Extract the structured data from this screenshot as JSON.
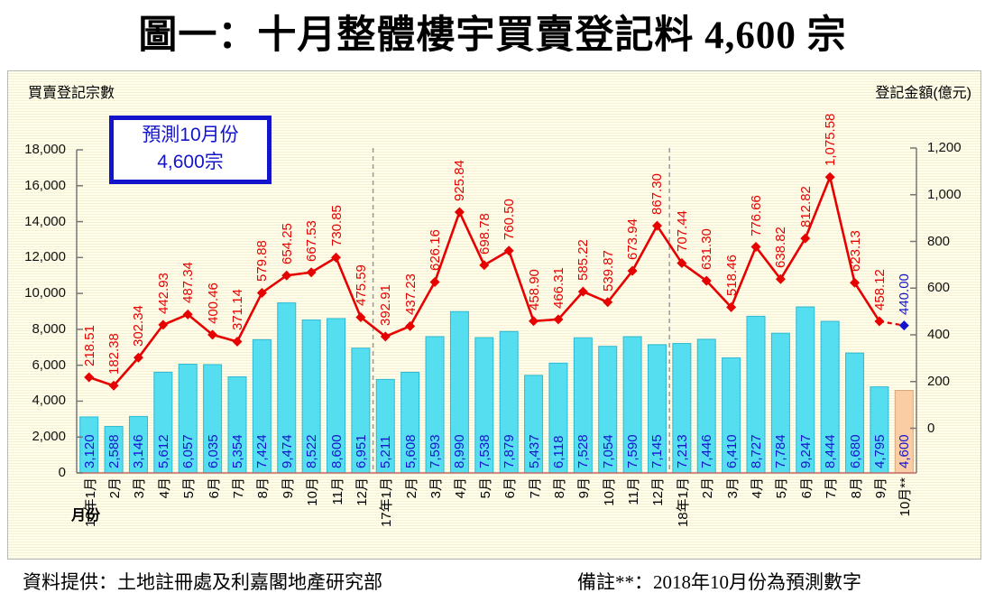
{
  "title": "圖一：十月整體樓宇買賣登記料 4,600 宗",
  "chart": {
    "left_axis_title": "買賣登記宗數",
    "right_axis_title": "登記金額(億元)",
    "x_axis_title": "月份",
    "annotation": {
      "line1": "預測10月份",
      "line2": "4,600宗"
    }
  },
  "footer": {
    "source": "資料提供：土地註冊處及利嘉閣地產研究部",
    "note": "備註**：2018年10月份為預測數字"
  },
  "chart_data": {
    "type": "bar+line combo",
    "title": "圖一：十月整體樓宇買賣登記料 4,600 宗",
    "xlabel": "月份",
    "ylabel_left": "買賣登記宗數",
    "ylabel_right": "登記金額(億元)",
    "grid": false,
    "legend": "none",
    "annotation_text": "預測10月份 4,600宗",
    "note": "備註**：2018年10月份為預測數字 (last category 10月** is a forecast: bar 4,600 / line 440.00 shown in blue/peach)",
    "categories": [
      "16年1月",
      "2月",
      "3月",
      "4月",
      "5月",
      "6月",
      "7月",
      "8月",
      "9月",
      "10月",
      "11月",
      "12月",
      "17年1月",
      "2月",
      "3月",
      "4月",
      "5月",
      "6月",
      "7月",
      "8月",
      "9月",
      "10月",
      "11月",
      "12月",
      "18年1月",
      "2月",
      "3月",
      "4月",
      "5月",
      "6月",
      "7月",
      "8月",
      "9月",
      "10月**"
    ],
    "year_separator_after_index": [
      11,
      23
    ],
    "series": [
      {
        "name": "買賣登記宗數",
        "type": "bar",
        "axis": "left",
        "values": [
          3120,
          2588,
          3146,
          5612,
          6057,
          6035,
          5354,
          7424,
          9474,
          8522,
          8600,
          6951,
          5211,
          5608,
          7593,
          8990,
          7538,
          7879,
          5437,
          6118,
          7528,
          7054,
          7590,
          7145,
          7213,
          7446,
          6410,
          8727,
          7784,
          9247,
          8444,
          6680,
          4795,
          4600
        ],
        "labels": [
          "3,120",
          "2,588",
          "3,146",
          "5,612",
          "6,057",
          "6,035",
          "5,354",
          "7,424",
          "9,474",
          "8,522",
          "8,600",
          "6,951",
          "5,211",
          "5,608",
          "7,593",
          "8,990",
          "7,538",
          "7,879",
          "5,437",
          "6,118",
          "7,528",
          "7,054",
          "7,590",
          "7,145",
          "7,213",
          "7,446",
          "6,410",
          "8,727",
          "7,784",
          "9,247",
          "8,444",
          "6,680",
          "4,795",
          "4,600"
        ],
        "forecast_last_point": true
      },
      {
        "name": "登記金額(億元)",
        "type": "line",
        "axis": "right",
        "values": [
          218.51,
          182.38,
          302.34,
          442.93,
          487.34,
          400.46,
          371.14,
          579.88,
          654.25,
          667.53,
          730.85,
          475.59,
          392.91,
          437.23,
          626.16,
          925.84,
          698.78,
          760.5,
          458.9,
          466.31,
          585.22,
          539.87,
          673.94,
          867.3,
          707.44,
          631.3,
          518.46,
          776.66,
          638.82,
          812.82,
          1075.58,
          623.13,
          458.12,
          440.0
        ],
        "labels": [
          "218.51",
          "182.38",
          "302.34",
          "442.93",
          "487.34",
          "400.46",
          "371.14",
          "579.88",
          "654.25",
          "667.53",
          "730.85",
          "475.59",
          "392.91",
          "437.23",
          "626.16",
          "925.84",
          "698.78",
          "760.50",
          "458.90",
          "466.31",
          "585.22",
          "539.87",
          "673.94",
          "867.30",
          "707.44",
          "631.30",
          "518.46",
          "776.66",
          "638.82",
          "812.82",
          "1,075.58",
          "623.13",
          "458.12",
          "440.00"
        ],
        "forecast_last_point": true
      }
    ],
    "left_axis": {
      "min": 0,
      "max": 18000,
      "step": 2000,
      "tick_labels": [
        "0",
        "2,000",
        "4,000",
        "6,000",
        "8,000",
        "10,000",
        "12,000",
        "14,000",
        "16,000",
        "18,000"
      ]
    },
    "right_axis": {
      "min": 0,
      "max": 1200,
      "step": 200,
      "tick_labels": [
        "0",
        "200",
        "400",
        "600",
        "800",
        "1,000",
        "1,200"
      ]
    },
    "colors": {
      "bar": "#55def0",
      "bar_border": "#2fb9d2",
      "forecast_bar": "#facda5",
      "forecast_bar_border": "#d9a87f",
      "bar_label": "#1414cc",
      "line": "#e60000",
      "forecast_marker": "#1414cc",
      "axis": "#777777",
      "base_line": "#c06868",
      "separator": "#9a9a9a"
    }
  }
}
